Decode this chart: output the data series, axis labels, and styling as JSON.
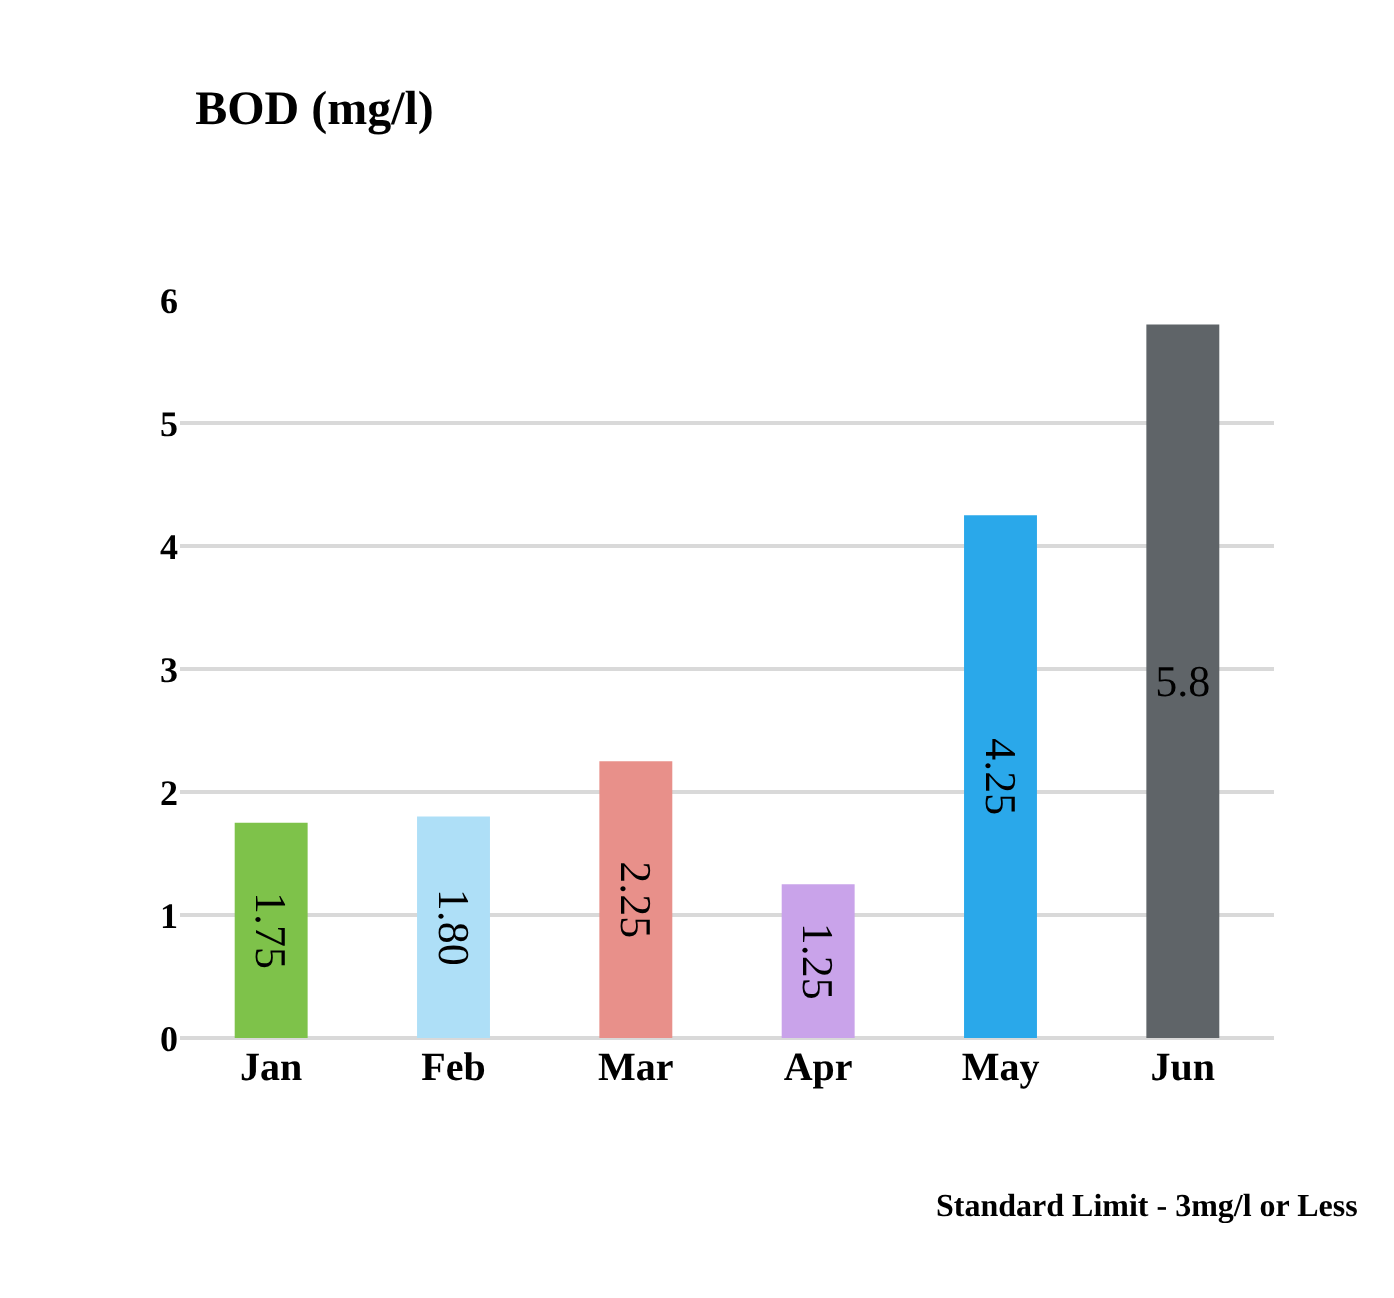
{
  "chart_data": {
    "type": "bar",
    "title": "BOD (mg/l)",
    "categories": [
      "Jan",
      "Feb",
      "Mar",
      "Apr",
      "May",
      "Jun"
    ],
    "values": [
      1.75,
      1.8,
      2.25,
      1.25,
      4.25,
      5.8
    ],
    "value_labels": [
      "1.75",
      "1.80",
      "2.25",
      "1.25",
      "4.25",
      "5.8"
    ],
    "colors": [
      "#7ec24a",
      "#aedff7",
      "#e8908a",
      "#c9a3ea",
      "#2aa8ea",
      "#5f6468"
    ],
    "ylim": [
      0,
      6
    ],
    "yticks": [
      0,
      1,
      2,
      3,
      4,
      5,
      6
    ],
    "grid": "y",
    "annotations": [
      "Standard Limit - 3mg/l or Less"
    ]
  }
}
